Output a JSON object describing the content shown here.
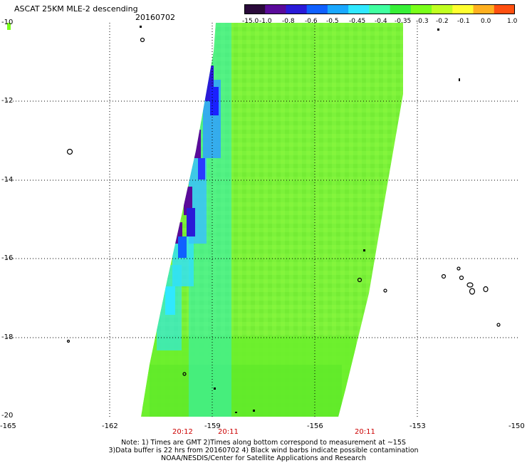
{
  "header": {
    "title": "ASCAT 25KM MLE-2 descending",
    "date": "20160702"
  },
  "colorbar": {
    "labels": [
      "-15.0",
      "-1.0",
      "-0.8",
      "-0.6",
      "-0.5",
      "-0.45",
      "-0.4",
      "-0.35",
      "-0.3",
      "-0.2",
      "-0.1",
      "0.0",
      "1.0"
    ],
    "colors": [
      "#2a0a3a",
      "#5a0a9a",
      "#2a1ad8",
      "#1060ff",
      "#1aa8ff",
      "#30e8ff",
      "#40ffa0",
      "#38f038",
      "#7aff1a",
      "#c0ff20",
      "#ffff30",
      "#ffb020",
      "#ff5010"
    ]
  },
  "axes": {
    "x_ticks": [
      "-165",
      "-162",
      "-159",
      "-156",
      "-153",
      "-150"
    ],
    "y_ticks": [
      "-10",
      "-12",
      "-14",
      "-16",
      "-18",
      "-20"
    ],
    "x_range": [
      -165,
      -150
    ],
    "y_range": [
      -20,
      -10
    ]
  },
  "times": [
    {
      "label": "20:12",
      "lon": -161.4
    },
    {
      "label": "20:11",
      "lon": -158.5
    },
    {
      "label": "20:11",
      "lon": -154.4
    }
  ],
  "notes": [
    "Note: 1) Times are GMT 2)Times along bottom correspond to measurement at ~15S",
    "3)Data buffer is 22 hrs from 20160702 4) Black wind barbs indicate possible contamination",
    "NOAA/NESDIS/Center for Satellite Applications and Research"
  ]
}
